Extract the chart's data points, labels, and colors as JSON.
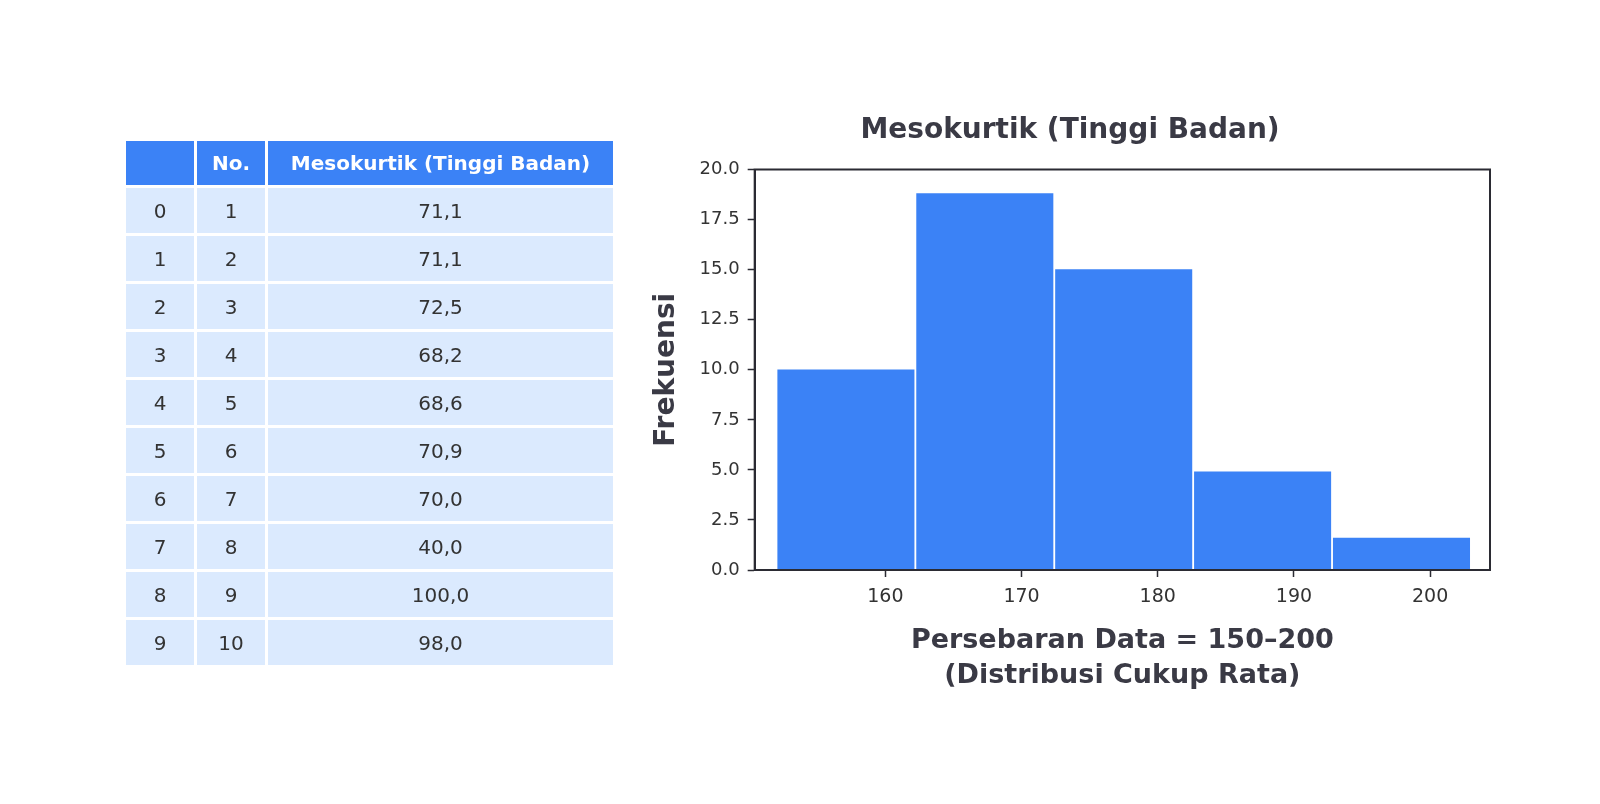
{
  "chart_data": [
    {
      "type": "heatmap",
      "categories": [
        "No.",
        "Mesokurtik (Tinggi Badan)"
      ],
      "y_categories": [
        "0",
        "1",
        "2",
        "3",
        "4",
        "5",
        "6",
        "7",
        "8",
        "9"
      ],
      "color": "#dbeafe",
      "cells": [
        [
          1,
          71.1
        ],
        [
          2,
          71.1
        ],
        [
          3,
          72.5
        ],
        [
          4,
          68.2
        ],
        [
          5,
          68.6
        ],
        [
          6,
          70.9
        ],
        [
          7,
          70.0
        ],
        [
          8,
          40.0
        ],
        [
          9,
          100.0
        ],
        [
          10,
          98.0
        ]
      ],
      "cell_labels": [
        [
          "1",
          "71,1"
        ],
        [
          "2",
          "71,1"
        ],
        [
          "3",
          "72,5"
        ],
        [
          "4",
          "68,2"
        ],
        [
          "5",
          "68,6"
        ],
        [
          "6",
          "70,9"
        ],
        [
          "7",
          "70,0"
        ],
        [
          "8",
          "40,0"
        ],
        [
          "9",
          "100,0"
        ],
        [
          "10",
          "98,0"
        ]
      ]
    },
    {
      "type": "histogram",
      "title": "Mesokurtik (Tinggi Badan)",
      "xlabel": "Persebaran Data = 150–200\n(Distribusi Cukup Rata)",
      "ylabel": "Frekuensi",
      "bins": [
        152,
        162.2,
        172.4,
        182.6,
        192.8,
        203
      ],
      "values": [
        10,
        18.8,
        15,
        4.9,
        1.6
      ],
      "color": "#3b82f6",
      "xlim": [
        150.4,
        204.4
      ],
      "xticks": [
        160,
        170,
        180,
        190,
        200
      ],
      "ylim": [
        0,
        20
      ],
      "yticks": [
        {
          "value": 0,
          "label": "0.0"
        },
        {
          "value": 2.5,
          "label": "2.5"
        },
        {
          "value": 5,
          "label": "5.0"
        },
        {
          "value": 7.5,
          "label": "7.5"
        },
        {
          "value": 10,
          "label": "10.0"
        },
        {
          "value": 12.5,
          "label": "12.5"
        },
        {
          "value": 15,
          "label": "15.0"
        },
        {
          "value": 17.5,
          "label": "17.5"
        },
        {
          "value": 20,
          "label": "20.0"
        }
      ]
    }
  ]
}
